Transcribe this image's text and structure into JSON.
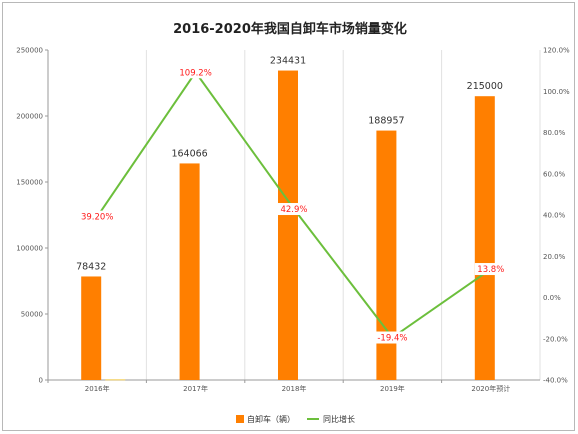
{
  "chart_data": {
    "type": "bar",
    "title": "2016-2020年我国自卸车市场销量变化",
    "categories": [
      "2016年",
      "2017年",
      "2018年",
      "2019年",
      "2020年预计"
    ],
    "series": [
      {
        "name": "自卸车（辆）",
        "type": "bar",
        "axis": "left",
        "color": "#ff7f00",
        "values": [
          78432,
          164066,
          234431,
          188957,
          215000
        ],
        "labels": [
          "78432",
          "164066",
          "234431",
          "188957",
          "215000"
        ]
      },
      {
        "name": "同比增长",
        "type": "line",
        "axis": "right",
        "color": "#6cbf3c",
        "values": [
          39.2,
          109.2,
          42.9,
          -19.4,
          13.8
        ],
        "labels": [
          "39.20%",
          "109.2%",
          "42.9%",
          "-19.4%",
          "13.8%"
        ]
      }
    ],
    "small_bar_2016": 500,
    "ylim_left": [
      0,
      250000
    ],
    "yticks_left": [
      "0",
      "50000",
      "100000",
      "150000",
      "200000",
      "250000"
    ],
    "ylim_right": [
      -40,
      120
    ],
    "yticks_right": [
      "-40.0%",
      "-20.0%",
      "0.0%",
      "20.0%",
      "40.0%",
      "60.0%",
      "80.0%",
      "100.0%",
      "120.0%"
    ],
    "grid": "vertical-between-categories",
    "legend": "bottom-center"
  }
}
